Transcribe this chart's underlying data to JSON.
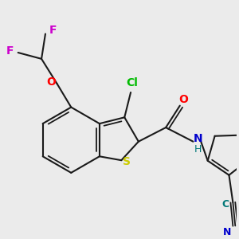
{
  "bg_color": "#ebebeb",
  "bond_color": "#1a1a1a",
  "atom_colors": {
    "F": "#cc00cc",
    "O": "#ff0000",
    "Cl": "#00bb00",
    "S": "#cccc00",
    "N": "#0000cc",
    "H": "#007777",
    "C_nitrile": "#007777",
    "N_nitrile": "#0000cc"
  },
  "figsize": [
    3.0,
    3.0
  ],
  "dpi": 100
}
